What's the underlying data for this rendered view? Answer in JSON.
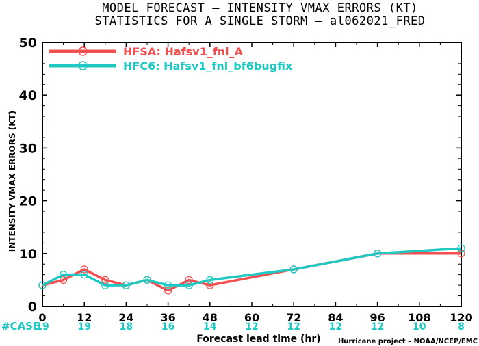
{
  "title": "MODEL FORECAST – INTENSITY VMAX ERRORS (KT)",
  "subtitle": "STATISTICS FOR A SINGLE STORM – al062021_FRED",
  "chart_data": {
    "type": "line",
    "title": "MODEL FORECAST – INTENSITY VMAX ERRORS (KT)",
    "subtitle": "STATISTICS FOR A SINGLE STORM – al062021_FRED",
    "xlabel": "Forecast lead time (hr)",
    "ylabel": "INTENSITY VMAX ERRORS (KT)",
    "xlim": [
      0,
      120
    ],
    "ylim": [
      0,
      50
    ],
    "xticks": [
      0,
      12,
      24,
      36,
      48,
      60,
      72,
      84,
      96,
      108,
      120
    ],
    "yticks": [
      0,
      10,
      20,
      30,
      40,
      50
    ],
    "grid": false,
    "legend_position": "top-left",
    "series": [
      {
        "name": "HFSA: Hafsv1_fnl_A",
        "color": "#f25050",
        "x": [
          0,
          6,
          12,
          18,
          24,
          30,
          36,
          42,
          48,
          72,
          96,
          120
        ],
        "y": [
          4,
          5,
          7,
          5,
          4,
          5,
          3,
          5,
          4,
          7,
          10,
          10
        ]
      },
      {
        "name": "HFC6: Hafsv1_fnl_bf6bugfix",
        "color": "#1fc8c2",
        "x": [
          0,
          6,
          12,
          18,
          24,
          30,
          36,
          42,
          48,
          72,
          96,
          120
        ],
        "y": [
          4,
          6,
          6,
          4,
          4,
          5,
          4,
          4,
          5,
          7,
          10,
          11
        ]
      }
    ],
    "case_label": "#CASE",
    "case_counts": [
      {
        "x": 0,
        "n": "19"
      },
      {
        "x": 12,
        "n": "19"
      },
      {
        "x": 24,
        "n": "18"
      },
      {
        "x": 36,
        "n": "16"
      },
      {
        "x": 48,
        "n": "14"
      },
      {
        "x": 60,
        "n": "12"
      },
      {
        "x": 72,
        "n": "12"
      },
      {
        "x": 84,
        "n": "12"
      },
      {
        "x": 96,
        "n": "12"
      },
      {
        "x": 108,
        "n": "10"
      },
      {
        "x": 120,
        "n": "8"
      }
    ],
    "credit": "Hurricane project – NOAA/NCEP/EMC"
  }
}
